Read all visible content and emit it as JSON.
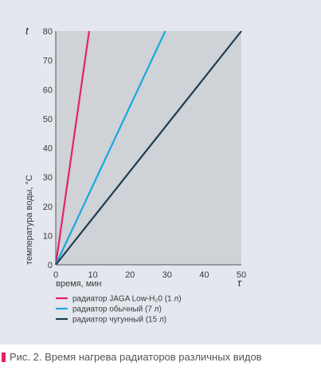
{
  "chart_data": {
    "type": "line",
    "y_symbol": "t",
    "x_symbol": "τ",
    "ylabel": "температура воды, °C",
    "xlabel": "время, мин",
    "xlim": [
      0,
      50
    ],
    "ylim": [
      0,
      80
    ],
    "x_ticks": [
      "0",
      "10",
      "20",
      "30",
      "40",
      "50"
    ],
    "y_ticks": [
      "0",
      "10",
      "20",
      "30",
      "40",
      "50",
      "60",
      "70",
      "80"
    ],
    "grid": false,
    "legend_position": "bottom-left",
    "series": [
      {
        "name": "радиатор JAGA Low-H₂0 (1 л)",
        "color": "#e2226b",
        "x": [
          0,
          9
        ],
        "y": [
          0,
          80
        ]
      },
      {
        "name": "радиатор обычный (7 л)",
        "color": "#1aa8df",
        "x": [
          0,
          29.5
        ],
        "y": [
          0,
          80
        ]
      },
      {
        "name": "радиатор чугунный (15 л)",
        "color": "#1e3d52",
        "x": [
          0,
          50
        ],
        "y": [
          0,
          80
        ]
      }
    ]
  },
  "caption": "Рис. 2. Время нагрева радиаторов различных видов",
  "colors": {
    "accent": "#e2226b",
    "background": "#e4e7ee"
  }
}
